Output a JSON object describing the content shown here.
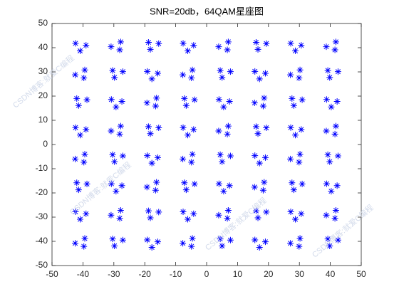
{
  "chart_data": {
    "type": "scatter",
    "title": "SNR=20db，64QAM星座图",
    "watermark": "CSDN博客:就爱C编程",
    "color": "#0000ff",
    "xlim": [
      -50,
      50
    ],
    "ylim": [
      -50,
      50
    ],
    "xticks": [
      -50,
      -40,
      -30,
      -20,
      -10,
      0,
      10,
      20,
      30,
      40,
      50
    ],
    "yticks": [
      -50,
      -40,
      -30,
      -20,
      -10,
      0,
      10,
      20,
      30,
      40,
      50
    ],
    "x": [
      -42.4,
      -39.0,
      -40.9,
      -27.8,
      -30.9,
      -28.1,
      -18.2,
      -15.5,
      -18.8,
      -7.6,
      -4.2,
      -6.1,
      7.0,
      3.9,
      6.7,
      16.6,
      19.3,
      16.0,
      27.2,
      30.6,
      28.7,
      41.8,
      38.7,
      41.5,
      -39.4,
      -42.5,
      -39.7,
      -29.8,
      -27.1,
      -30.4,
      -19.2,
      -15.8,
      -17.7,
      -4.6,
      -7.7,
      -4.9,
      5.0,
      7.7,
      4.4,
      15.6,
      19.0,
      17.1,
      30.2,
      27.1,
      29.9,
      39.8,
      42.5,
      39.2,
      -41.4,
      -38.7,
      -42.0,
      -30.8,
      -27.4,
      -29.3,
      -16.2,
      -19.3,
      -16.5,
      -6.6,
      -3.9,
      -7.2,
      4.0,
      7.4,
      5.5,
      18.6,
      15.5,
      18.3,
      28.2,
      30.9,
      27.6,
      38.8,
      42.2,
      40.3,
      -42.4,
      -39.0,
      -40.9,
      -27.8,
      -30.9,
      -28.1,
      -18.2,
      -15.5,
      -18.8,
      -7.6,
      -4.2,
      -6.1,
      7.0,
      3.9,
      6.7,
      16.6,
      19.3,
      16.0,
      27.2,
      30.6,
      28.7,
      41.8,
      38.7,
      41.5,
      -39.4,
      -42.5,
      -39.7,
      -29.8,
      -27.1,
      -30.4,
      -19.2,
      -15.8,
      -17.7,
      -4.6,
      -7.7,
      -4.9,
      5.0,
      7.7,
      4.4,
      15.6,
      19.0,
      17.1,
      30.2,
      27.1,
      29.9,
      39.8,
      42.5,
      39.2,
      -41.4,
      -38.7,
      -42.0,
      -30.8,
      -27.4,
      -29.3,
      -16.2,
      -19.3,
      -16.5,
      -6.6,
      -3.9,
      -7.2,
      4.0,
      7.4,
      5.5,
      18.6,
      15.5,
      18.3,
      28.2,
      30.9,
      27.6,
      38.8,
      42.2,
      40.3,
      -42.4,
      -39.0,
      -40.9,
      -27.8,
      -30.9,
      -28.1,
      -18.2,
      -15.5,
      -18.8,
      -7.6,
      -4.2,
      -6.1,
      7.0,
      3.9,
      6.7,
      16.6,
      19.3,
      16.0,
      27.2,
      30.6,
      28.7,
      41.8,
      38.7,
      41.5,
      -39.4,
      -42.5,
      -39.7,
      -29.8,
      -27.1,
      -30.4,
      -19.2,
      -15.8,
      -17.7,
      -4.6,
      -7.7,
      -4.9,
      5.0,
      7.7,
      4.4,
      15.6,
      19.0,
      17.1,
      30.2,
      27.1,
      29.9,
      39.8,
      42.5,
      39.2
    ],
    "values": [
      41.8,
      41.0,
      38.7,
      42.4,
      40.4,
      39.1,
      39.3,
      41.7,
      42.2,
      41.8,
      41.0,
      38.7,
      42.4,
      40.4,
      39.1,
      39.3,
      41.7,
      42.2,
      41.8,
      41.0,
      38.7,
      42.4,
      40.4,
      39.1,
      30.8,
      28.8,
      27.5,
      27.7,
      30.1,
      30.6,
      30.2,
      29.4,
      27.1,
      30.8,
      28.8,
      27.5,
      27.7,
      30.1,
      30.6,
      30.2,
      29.4,
      27.1,
      30.8,
      28.8,
      27.5,
      27.7,
      30.1,
      30.6,
      16.1,
      18.5,
      19.0,
      18.6,
      17.8,
      15.5,
      19.2,
      17.2,
      15.9,
      16.1,
      18.5,
      19.0,
      18.6,
      17.8,
      15.5,
      19.2,
      17.2,
      15.9,
      16.1,
      18.5,
      19.0,
      18.6,
      17.8,
      15.5,
      7.0,
      6.2,
      3.9,
      7.6,
      5.6,
      4.3,
      4.5,
      6.9,
      7.4,
      7.0,
      6.2,
      3.9,
      7.6,
      5.6,
      4.3,
      4.5,
      6.9,
      7.4,
      7.0,
      6.2,
      3.9,
      7.6,
      5.6,
      4.3,
      -4.0,
      -6.0,
      -7.3,
      -7.1,
      -4.7,
      -4.2,
      -4.6,
      -5.4,
      -7.7,
      -4.0,
      -6.0,
      -7.3,
      -7.1,
      -4.7,
      -4.2,
      -4.6,
      -5.4,
      -7.7,
      -4.0,
      -6.0,
      -7.3,
      -7.1,
      -4.7,
      -4.2,
      -18.7,
      -16.3,
      -15.8,
      -16.2,
      -17.0,
      -19.3,
      -15.6,
      -17.6,
      -18.9,
      -18.7,
      -16.3,
      -15.8,
      -16.2,
      -17.0,
      -19.3,
      -15.6,
      -17.6,
      -18.9,
      -18.7,
      -16.3,
      -15.8,
      -16.2,
      -17.0,
      -19.3,
      -27.8,
      -28.6,
      -30.9,
      -27.2,
      -29.2,
      -30.5,
      -30.3,
      -27.9,
      -27.4,
      -27.8,
      -28.6,
      -30.9,
      -27.2,
      -29.2,
      -30.5,
      -30.3,
      -27.9,
      -27.4,
      -27.8,
      -28.6,
      -30.9,
      -27.2,
      -29.2,
      -30.5,
      -38.8,
      -40.8,
      -42.1,
      -41.9,
      -39.5,
      -39.0,
      -39.4,
      -40.2,
      -42.5,
      -38.8,
      -40.8,
      -42.1,
      -41.9,
      -39.5,
      -39.0,
      -39.4,
      -40.2,
      -42.5,
      -38.8,
      -40.8,
      -42.1,
      -41.9,
      -39.5,
      -39.0
    ]
  }
}
